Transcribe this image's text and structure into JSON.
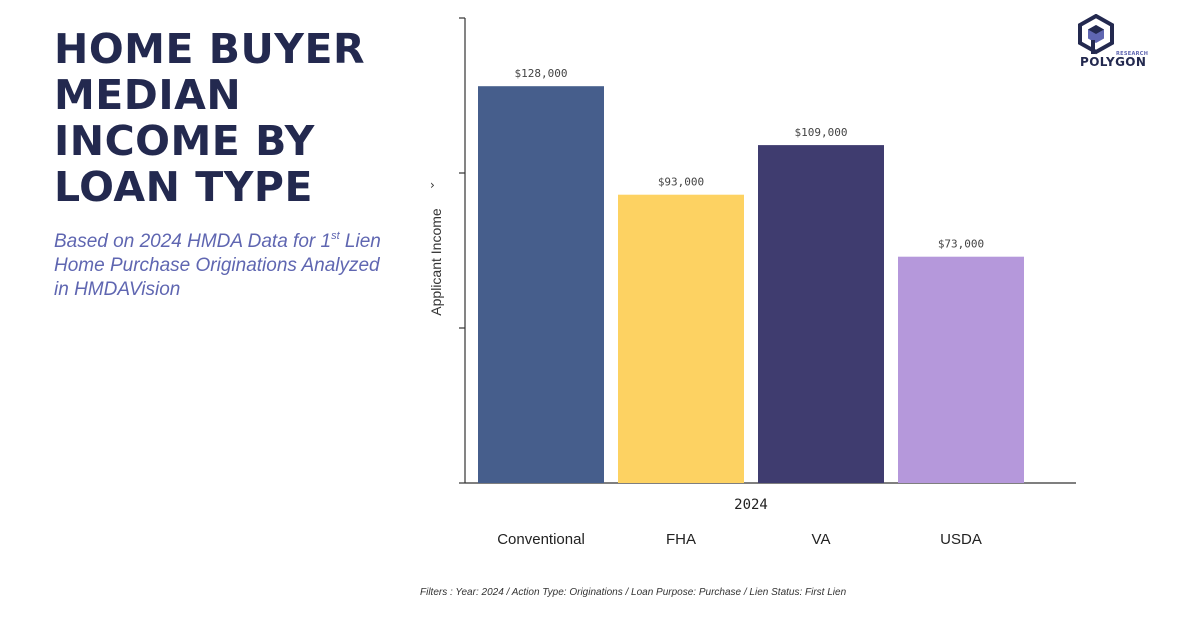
{
  "title": "HOME BUYER\nMEDIAN\nINCOME BY\nLOAN TYPE",
  "subtitle": {
    "part1": "Based on 2024 HMDA Data for 1",
    "sup": "st",
    "part2": " Lien Home Purchase Originations Analyzed in HMDAVision"
  },
  "logo": {
    "top": "RESEARCH",
    "word": "POLYGON",
    "icon": "polygon-hexagon-logo-icon",
    "colors": {
      "dark": "#23294f",
      "accent": "#5f66b1"
    }
  },
  "footnote": "Filters : Year: 2024 / Action Type: Originations / Loan Purpose: Purchase / Lien Status: First Lien",
  "chart_data": {
    "type": "bar",
    "ylabel": "Applicant Income",
    "ylabel_arrow": "›",
    "group_label": "2024",
    "categories": [
      "Conventional",
      "FHA",
      "VA",
      "USDA"
    ],
    "values": [
      128000,
      93000,
      109000,
      73000
    ],
    "value_labels": [
      "$128,000",
      "$93,000",
      "$109,000",
      "$73,000"
    ],
    "colors": [
      "#465e8c",
      "#fdd262",
      "#3f3c6f",
      "#b598db"
    ],
    "ylim": [
      0,
      150000
    ],
    "yticks": [
      0,
      50000,
      100000,
      150000
    ],
    "show_tick_labels": false,
    "grid": false,
    "legend": "none"
  }
}
